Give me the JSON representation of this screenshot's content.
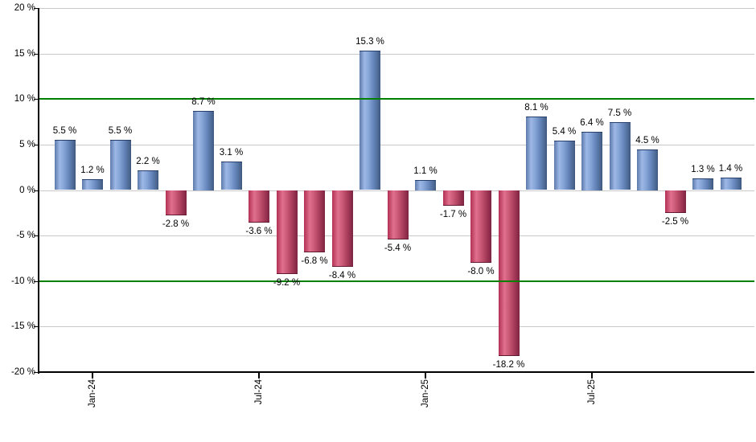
{
  "chart_data": {
    "type": "bar",
    "title": "",
    "unit": "%",
    "values": [
      5.5,
      1.2,
      5.5,
      2.2,
      -2.8,
      8.7,
      3.1,
      -3.6,
      -9.2,
      -6.8,
      -8.4,
      15.3,
      -5.4,
      1.1,
      -1.7,
      -8.0,
      -18.2,
      8.1,
      5.4,
      6.4,
      7.5,
      4.5,
      -2.5,
      1.3,
      1.4
    ],
    "bar_labels": [
      "5.5 %",
      "1.2 %",
      "5.5 %",
      "2.2 %",
      "-2.8 %",
      "8.7 %",
      "3.1 %",
      "-3.6 %",
      "-9.2 %",
      "-6.8 %",
      "-8.4 %",
      "15.3 %",
      "-5.4 %",
      "1.1 %",
      "-1.7 %",
      "-8.0 %",
      "-18.2 %",
      "8.1 %",
      "5.4 %",
      "6.4 %",
      "7.5 %",
      "4.5 %",
      "-2.5 %",
      "1.3 %",
      "1.4 %"
    ],
    "x_tick_labels": [
      "Jan-24",
      "Jul-24",
      "Jan-25",
      "Jul-25"
    ],
    "x_tick_bar_indices": [
      1,
      7,
      13,
      19
    ],
    "y_tick_values": [
      20,
      15,
      10,
      5,
      0,
      -5,
      -10,
      -15,
      -20
    ],
    "y_tick_labels": [
      "20 %",
      "15 %",
      "10 %",
      "5 %",
      "0 %",
      "-5 %",
      "-10 %",
      "-15 %",
      "-20 %"
    ],
    "ylim": [
      -20,
      20
    ],
    "grid": true,
    "legend": null,
    "threshold_lines": {
      "values": [
        10,
        -10
      ],
      "color": "#008000"
    },
    "colors": {
      "background": "#ffffff",
      "gridline": "#c8c8c8",
      "axis": "#000000",
      "label_text": "#000000",
      "positive_gradient": [
        [
          "#5b79a9",
          0
        ],
        [
          "#9db8e6",
          24
        ],
        [
          "#84a3d6",
          45
        ],
        [
          "#6787bd",
          66
        ],
        [
          "#53719f",
          84
        ],
        [
          "#3f587e",
          100
        ]
      ],
      "negative_gradient": [
        [
          "#b23054",
          0
        ],
        [
          "#e0708d",
          28
        ],
        [
          "#c65573",
          52
        ],
        [
          "#a53a58",
          76
        ],
        [
          "#7e2342",
          100
        ]
      ],
      "positive_cap": "#27406b",
      "negative_cap": "#621830"
    }
  }
}
